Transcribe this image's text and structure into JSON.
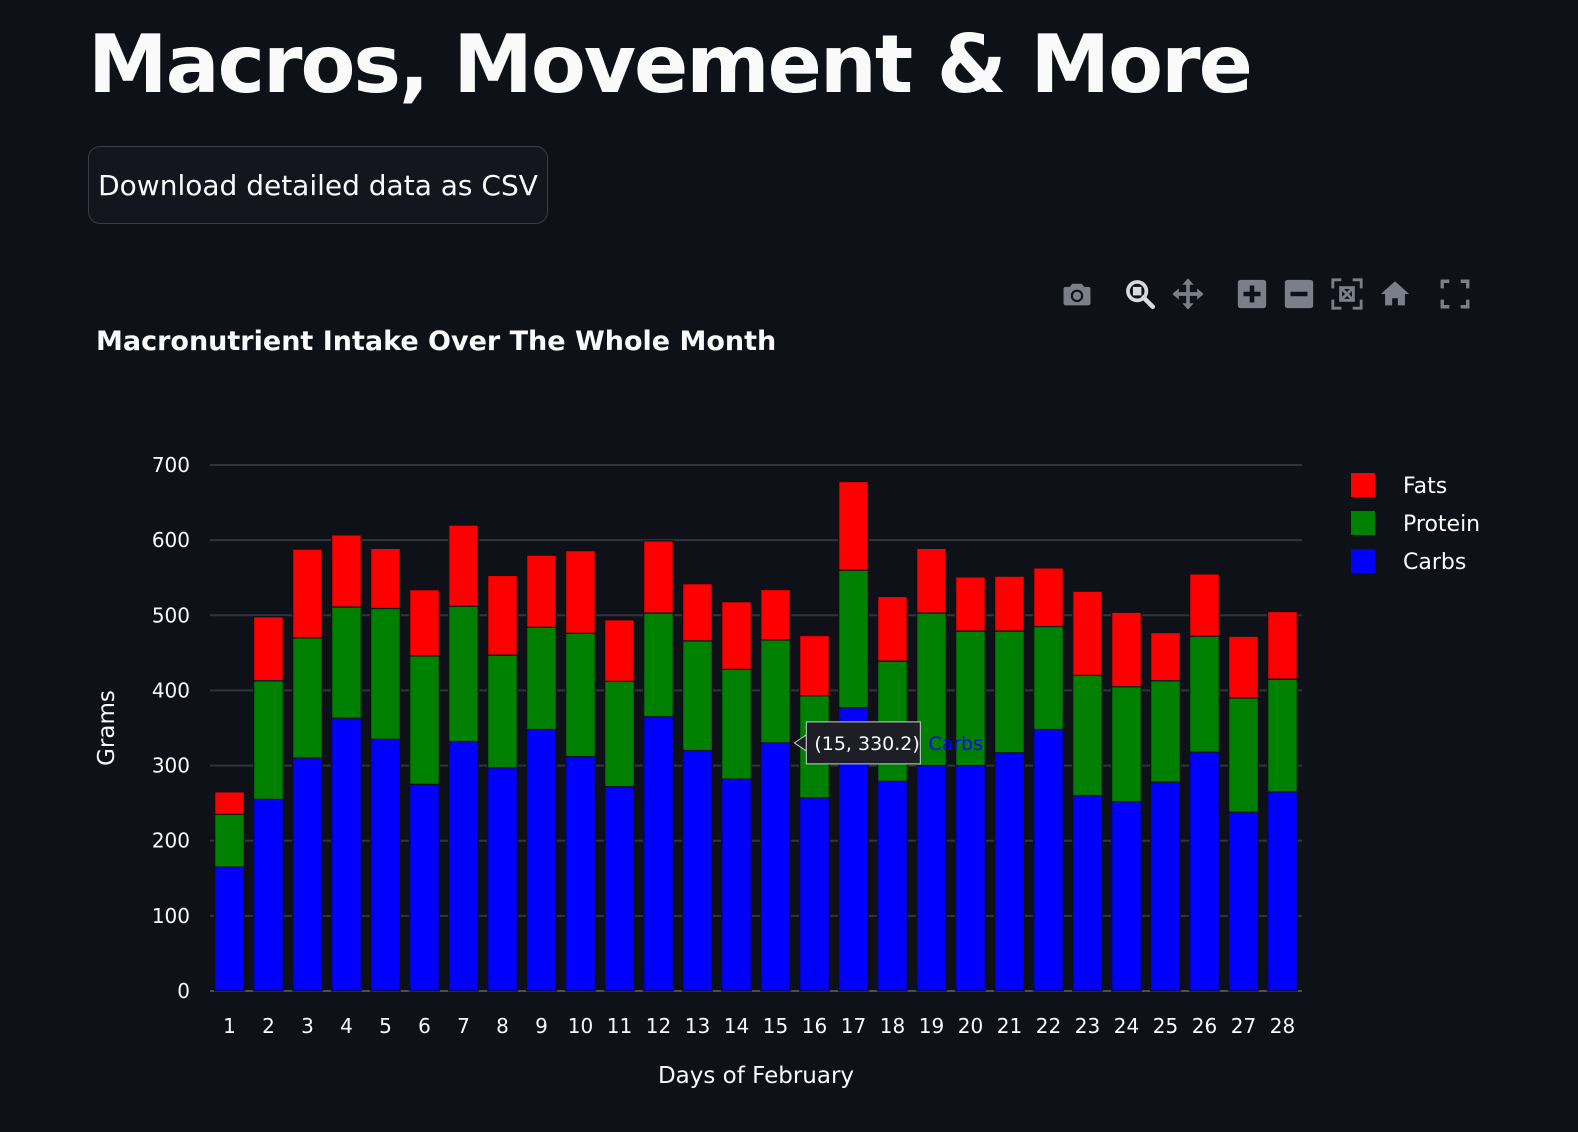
{
  "page": {
    "title": "Macros, Movement & More",
    "download_label": "Download detailed data as CSV"
  },
  "modebar": {
    "items": [
      {
        "name": "camera-icon",
        "label": "Download plot as a png"
      },
      {
        "name": "zoom-icon",
        "label": "Zoom"
      },
      {
        "name": "pan-icon",
        "label": "Pan"
      },
      {
        "name": "zoom-in-icon",
        "label": "Zoom in"
      },
      {
        "name": "zoom-out-icon",
        "label": "Zoom out"
      },
      {
        "name": "autoscale-icon",
        "label": "Autoscale"
      },
      {
        "name": "home-icon",
        "label": "Reset axes"
      },
      {
        "name": "fullscreen-icon",
        "label": "Fullscreen"
      }
    ]
  },
  "chart_data": {
    "type": "bar",
    "barmode": "stack",
    "title": "Macronutrient Intake Over The Whole Month",
    "xlabel": "Days of February",
    "ylabel": "Grams",
    "ylim": [
      0,
      700
    ],
    "yticks": [
      0,
      100,
      200,
      300,
      400,
      500,
      600,
      700
    ],
    "grid": true,
    "legend_position": "top-right",
    "categories": [
      1,
      2,
      3,
      4,
      5,
      6,
      7,
      8,
      9,
      10,
      11,
      12,
      13,
      14,
      15,
      16,
      17,
      18,
      19,
      20,
      21,
      22,
      23,
      24,
      25,
      26,
      27,
      28
    ],
    "series": [
      {
        "name": "Carbs",
        "color": "#0000ff",
        "values": [
          165,
          255,
          310,
          363,
          335,
          275,
          332,
          297,
          348,
          312,
          272,
          365,
          320,
          282,
          330.2,
          257,
          377,
          279,
          300,
          300,
          317,
          348,
          260,
          252,
          278,
          318,
          238,
          265
        ]
      },
      {
        "name": "Protein",
        "color": "#008000",
        "values": [
          70,
          158,
          160,
          148,
          174,
          171,
          180,
          150,
          136,
          164,
          140,
          138,
          146,
          146,
          137,
          136,
          183,
          160,
          203,
          179,
          162,
          137,
          160,
          153,
          135,
          154,
          152,
          150
        ]
      },
      {
        "name": "Fats",
        "color": "#ff0000",
        "values": [
          30,
          85,
          118,
          96,
          80,
          88,
          108,
          106,
          96,
          110,
          82,
          96,
          76,
          90,
          67,
          80,
          118,
          86,
          86,
          72,
          73,
          78,
          112,
          99,
          64,
          83,
          82,
          90
        ]
      }
    ],
    "legend_order": [
      "Fats",
      "Protein",
      "Carbs"
    ],
    "tooltip": {
      "day": 15,
      "series": "Carbs",
      "value": 330.2,
      "label": "(15, 330.2)"
    }
  }
}
